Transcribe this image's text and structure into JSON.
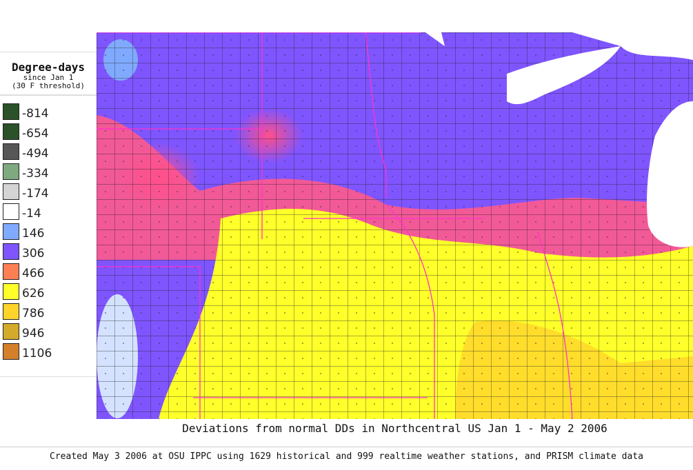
{
  "legend": {
    "title": "Degree-days",
    "subtitle1": "since Jan 1",
    "subtitle2": "(30 F threshold)",
    "items": [
      {
        "label": "-814",
        "color": "#2b5229"
      },
      {
        "label": "-654",
        "color": "#2b5229"
      },
      {
        "label": "-494",
        "color": "#575757"
      },
      {
        "label": "-334",
        "color": "#7faa7f"
      },
      {
        "label": "-174",
        "color": "#d4d4d4"
      },
      {
        "label": "-14",
        "color": "#ffffff"
      },
      {
        "label": "146",
        "color": "#80aaff"
      },
      {
        "label": "306",
        "color": "#7f55ff"
      },
      {
        "label": "466",
        "color": "#ff7f55"
      },
      {
        "label": "626",
        "color": "#ffff2a"
      },
      {
        "label": "786",
        "color": "#ffd42a"
      },
      {
        "label": "946",
        "color": "#d4aa2a"
      },
      {
        "label": "1106",
        "color": "#d4802a"
      }
    ]
  },
  "map": {
    "lakes_color": "#ffffff",
    "state_border_color": "#ff33cc",
    "county_border_color": "#222222"
  },
  "title": "Deviations from normal DDs in Northcentral US Jan 1 - May 2 2006",
  "credit": "Created May 3 2006 at OSU IPPC using 1629 historical and 999 realtime weather stations, and PRISM climate data"
}
